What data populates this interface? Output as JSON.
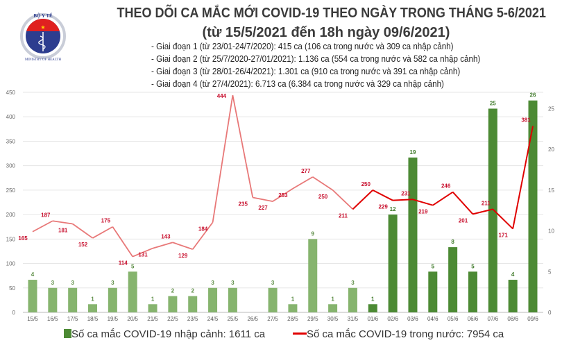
{
  "logo": {
    "top_text": "BỘ Y TẾ",
    "bottom_text": "MINISTRY OF HEALTH"
  },
  "header": {
    "title": "THEO DÕI CA MẮC MỚI COVID-19 THEO NGÀY TRONG THÁNG 5-6/2021",
    "subtitle": "(từ 15/5/2021 đến 18h ngày 09/6/2021)",
    "stages": [
      "- Giai đoạn 1 (từ 23/01-24/7/2020): 415 ca (106 ca trong nước và 309 ca nhập cảnh)",
      "- Giai đoạn 2 (từ 25/7/2020-27/01/2021): 1.136 ca (554 ca trong nước và 582 ca nhập cảnh)",
      "- Giai đoạn 3 (từ 28/01-26/4/2021): 1.301 ca (910 ca trong nước và 391 ca nhập cảnh)",
      "- Giai đoạn 4 (từ 27/4/2021): 6.713 ca (6.384 ca trong nước và 329 ca nhập cảnh)"
    ]
  },
  "chart_data": {
    "type": "bar+line",
    "categories": [
      "15/5",
      "16/5",
      "17/5",
      "18/5",
      "19/5",
      "20/5",
      "21/5",
      "22/5",
      "23/5",
      "24/5",
      "25/5",
      "26/5",
      "27/5",
      "28/5",
      "29/5",
      "30/5",
      "31/5",
      "01/6",
      "02/6",
      "03/6",
      "04/6",
      "05/6",
      "06/6",
      "07/6",
      "08/6",
      "09/6"
    ],
    "series": [
      {
        "name": "Số ca mắc COVID-19 nhập cảnh: 1611 ca",
        "type": "bar",
        "axis": "right",
        "values": [
          4,
          3,
          3,
          1,
          3,
          5,
          1,
          2,
          2,
          3,
          3,
          0,
          3,
          1,
          9,
          1,
          3,
          1,
          12,
          19,
          5,
          8,
          5,
          25,
          4,
          26
        ],
        "color_light": "#86b46e",
        "color_dark": "#4c8a34"
      },
      {
        "name": "Số ca mắc COVID-19 trong nước: 7954 ca",
        "type": "line",
        "axis": "left",
        "values": [
          165,
          187,
          181,
          152,
          175,
          114,
          131,
          143,
          129,
          184,
          444,
          235,
          227,
          253,
          277,
          250,
          211,
          250,
          229,
          231,
          219,
          246,
          201,
          211,
          171,
          381
        ],
        "color_light": "#e87878",
        "color_dark": "#e00000"
      }
    ],
    "left_axis": {
      "range": [
        0,
        450
      ],
      "ticks": [
        0,
        50,
        100,
        150,
        200,
        250,
        300,
        350,
        400,
        450
      ]
    },
    "right_axis": {
      "range": [
        0,
        27
      ],
      "ticks": [
        0,
        5,
        10,
        15,
        20,
        25
      ]
    },
    "color_change_from": "01/6",
    "line_color_change_from": "31/5",
    "grid": true,
    "legend_position": "bottom"
  }
}
